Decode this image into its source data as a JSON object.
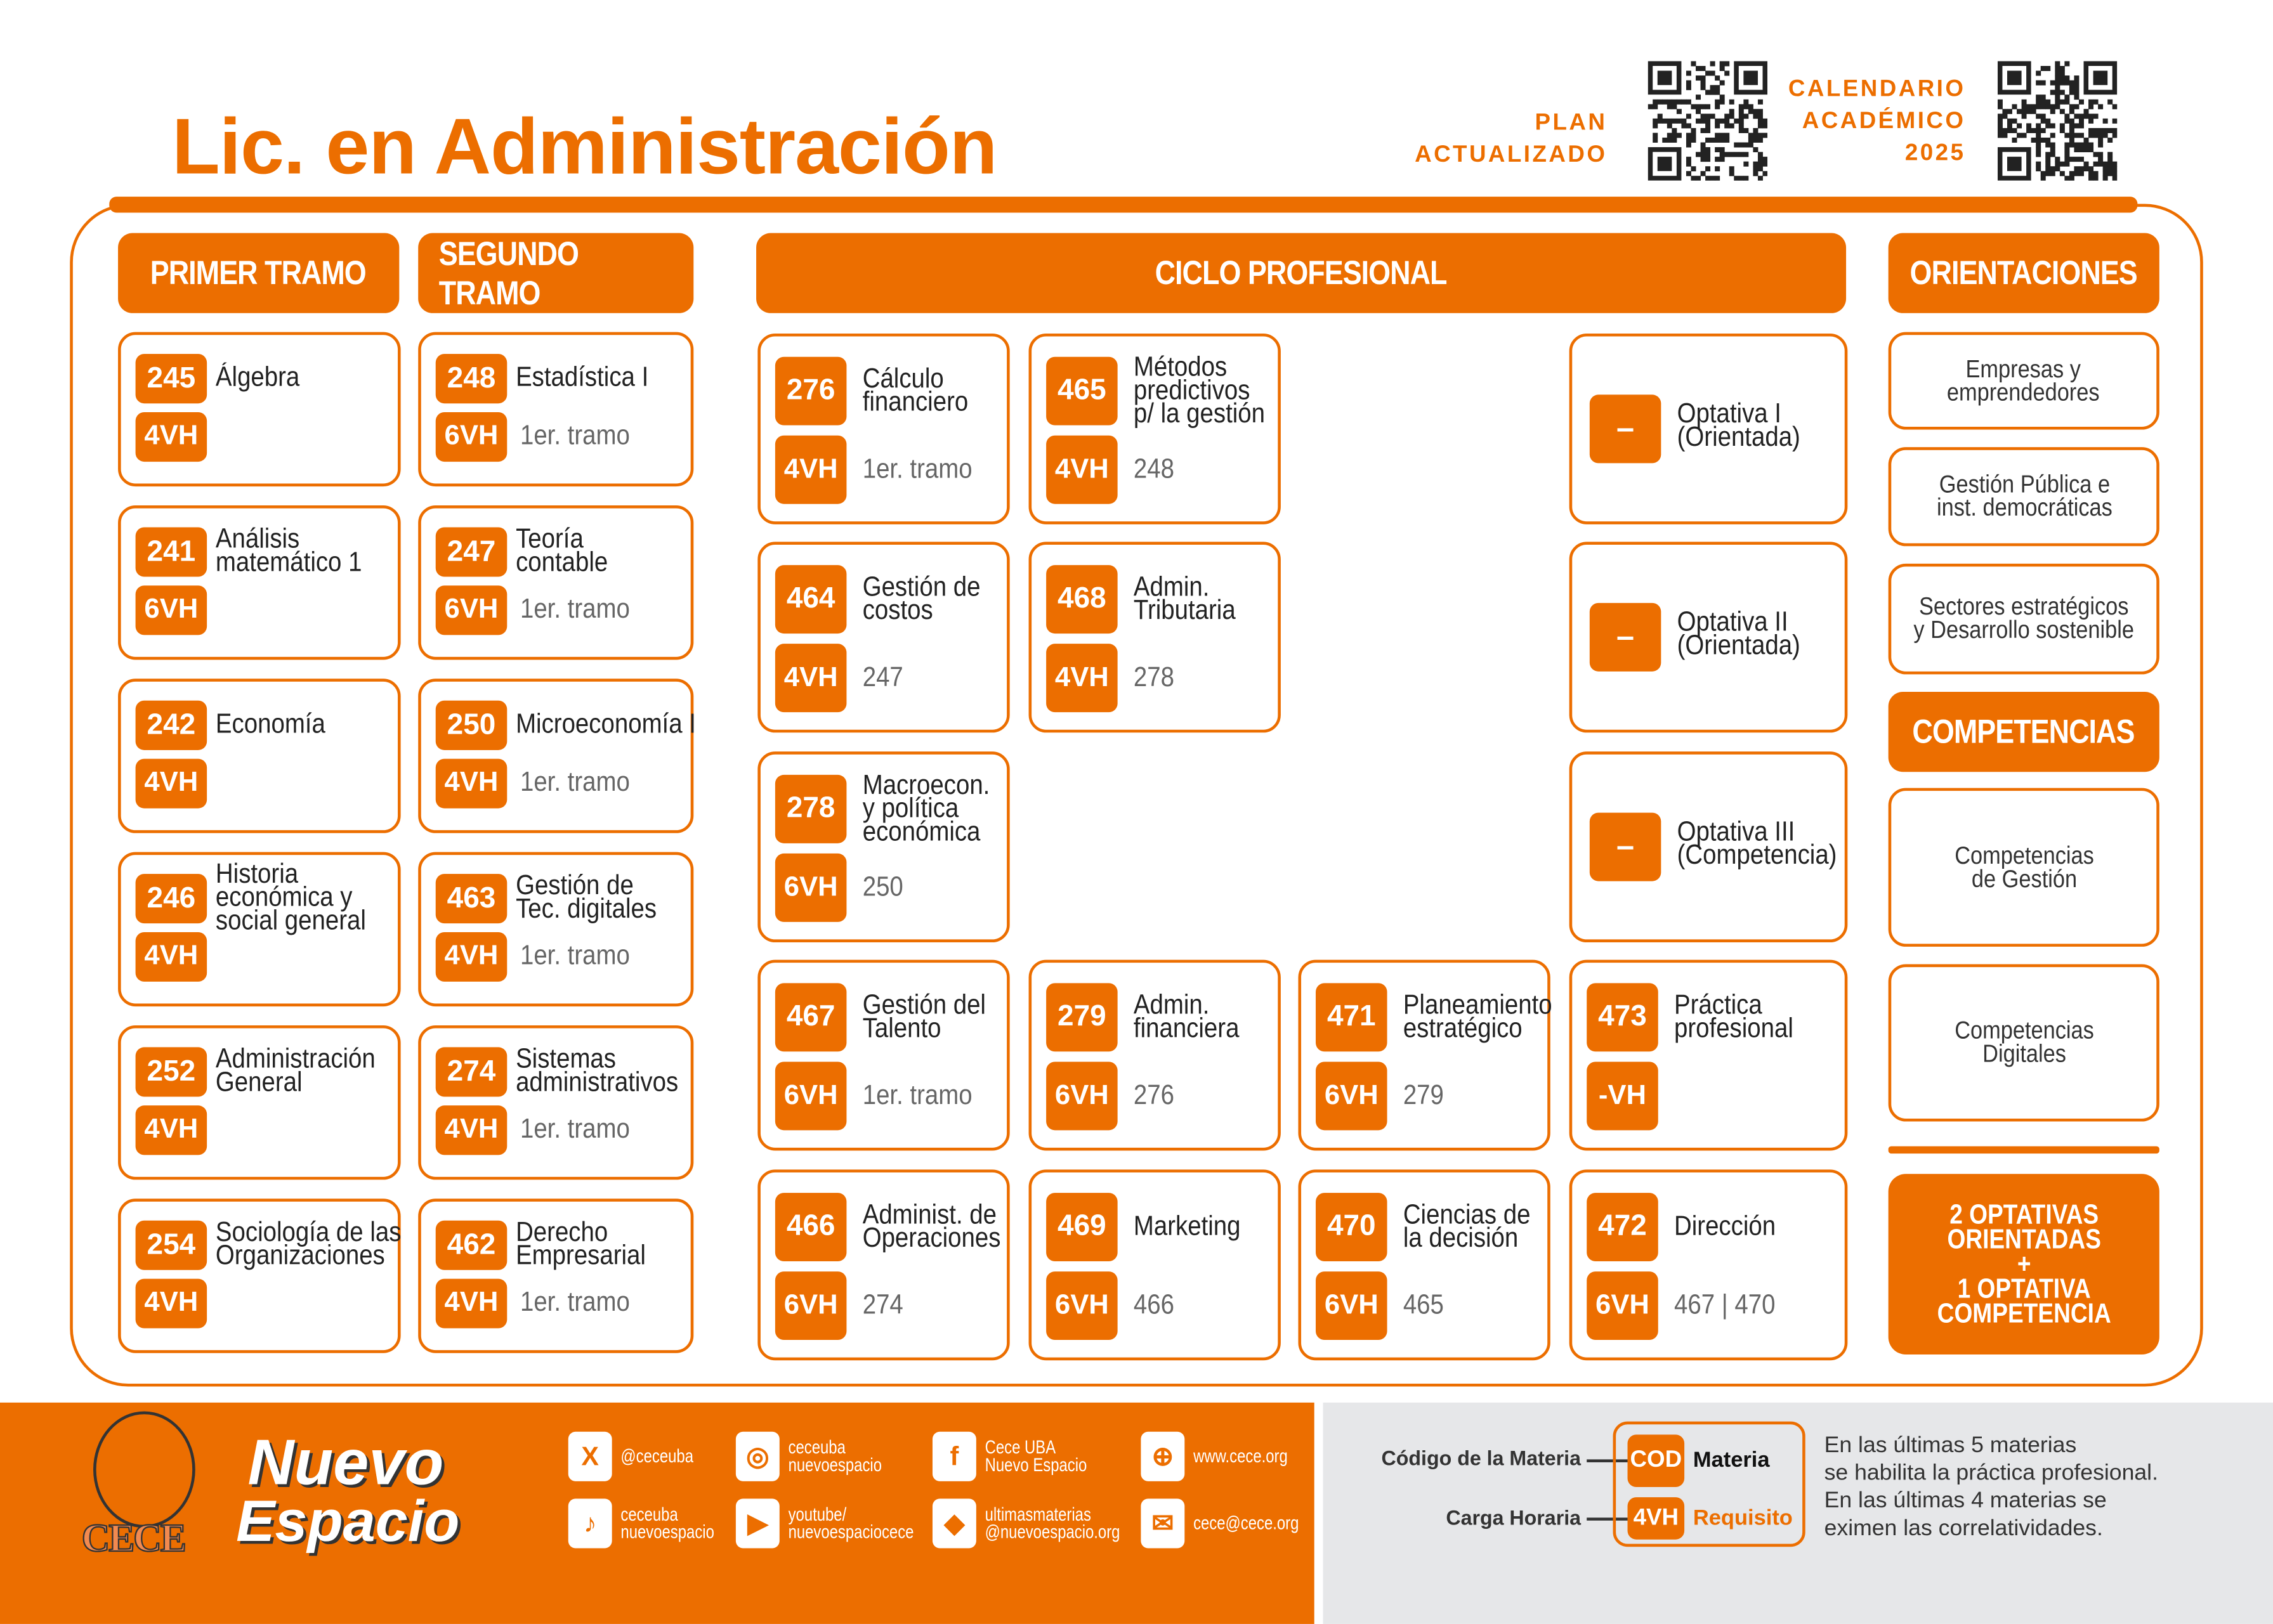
{
  "colors": {
    "accent": "#EC6E00",
    "footer_gray": "#E6E7E9"
  },
  "header": {
    "title": "Lic. en Administración",
    "plan_label": "PLAN\nACTUALIZADO",
    "calendar_label": "CALENDARIO\nACADÉMICO\n2025"
  },
  "sections": {
    "primer_tramo": "PRIMER TRAMO",
    "segundo_tramo": "SEGUNDO TRAMO",
    "ciclo_profesional": "CICLO PROFESIONAL",
    "orientaciones": "ORIENTACIONES",
    "competencias": "COMPETENCIAS"
  },
  "primer_tramo": [
    {
      "code": "245",
      "name": "Álgebra",
      "hours": "4VH",
      "req": ""
    },
    {
      "code": "241",
      "name": "Análisis\nmatemático 1",
      "hours": "6VH",
      "req": ""
    },
    {
      "code": "242",
      "name": "Economía",
      "hours": "4VH",
      "req": ""
    },
    {
      "code": "246",
      "name": "Historia\neconómica y\nsocial general",
      "hours": "4VH",
      "req": ""
    },
    {
      "code": "252",
      "name": "Administración\nGeneral",
      "hours": "4VH",
      "req": ""
    },
    {
      "code": "254",
      "name": "Sociología de las\nOrganizaciones",
      "hours": "4VH",
      "req": ""
    }
  ],
  "segundo_tramo": [
    {
      "code": "248",
      "name": "Estadística I",
      "hours": "6VH",
      "req": "1er. tramo"
    },
    {
      "code": "247",
      "name": "Teoría\ncontable",
      "hours": "6VH",
      "req": "1er. tramo"
    },
    {
      "code": "250",
      "name": "Microeconomía I",
      "hours": "4VH",
      "req": "1er. tramo"
    },
    {
      "code": "463",
      "name": "Gestión de\nTec. digitales",
      "hours": "4VH",
      "req": "1er. tramo"
    },
    {
      "code": "274",
      "name": "Sistemas\nadministrativos",
      "hours": "4VH",
      "req": "1er. tramo"
    },
    {
      "code": "462",
      "name": "Derecho\nEmpresarial",
      "hours": "4VH",
      "req": "1er. tramo"
    }
  ],
  "ciclo_profesional": [
    [
      {
        "code": "276",
        "name": "Cálculo\nfinanciero",
        "hours": "4VH",
        "req": "1er. tramo"
      },
      {
        "code": "465",
        "name": "Métodos\npredictivos\np/ la gestión",
        "hours": "4VH",
        "req": "248"
      },
      null,
      {
        "code": "–",
        "name": "Optativa I\n(Orientada)",
        "hours": "",
        "req": ""
      }
    ],
    [
      {
        "code": "464",
        "name": "Gestión de\ncostos",
        "hours": "4VH",
        "req": "247"
      },
      {
        "code": "468",
        "name": "Admin.\nTributaria",
        "hours": "4VH",
        "req": "278"
      },
      null,
      {
        "code": "–",
        "name": "Optativa II\n(Orientada)",
        "hours": "",
        "req": ""
      }
    ],
    [
      {
        "code": "278",
        "name": "Macroecon.\ny política\neconómica",
        "hours": "6VH",
        "req": "250"
      },
      null,
      null,
      {
        "code": "–",
        "name": "Optativa III\n(Competencia)",
        "hours": "",
        "req": ""
      }
    ],
    [
      {
        "code": "467",
        "name": "Gestión del\nTalento",
        "hours": "6VH",
        "req": "1er. tramo"
      },
      {
        "code": "279",
        "name": "Admin.\nfinanciera",
        "hours": "6VH",
        "req": "276"
      },
      {
        "code": "471",
        "name": "Planeamiento\nestratégico",
        "hours": "6VH",
        "req": "279"
      },
      {
        "code": "473",
        "name": "Práctica\nprofesional",
        "hours": "-VH",
        "req": ""
      }
    ],
    [
      {
        "code": "466",
        "name": "Administ. de\nOperaciones",
        "hours": "6VH",
        "req": "274"
      },
      {
        "code": "469",
        "name": "Marketing",
        "hours": "6VH",
        "req": "466"
      },
      {
        "code": "470",
        "name": "Ciencias de\nla decisión",
        "hours": "6VH",
        "req": "465"
      },
      {
        "code": "472",
        "name": "Dirección",
        "hours": "6VH",
        "req": "467 | 470"
      }
    ]
  ],
  "orientaciones": [
    "Empresas y\nemprendedores",
    "Gestión Pública e\ninst. democráticas",
    "Sectores estratégicos\ny Desarrollo sostenible"
  ],
  "competencias": [
    "Competencias\nde Gestión",
    "Competencias\nDigitales"
  ],
  "summary": "2 OPTATIVAS\nORIENTADAS\n+\n1 OPTATIVA\nCOMPETENCIA",
  "footer": {
    "logo_cece": "CECE",
    "logo_nuevo": "Nuevo",
    "logo_espacio": "Espacio",
    "social": [
      {
        "icon": "x-icon",
        "glyph": "X",
        "text": "@ceceuba"
      },
      {
        "icon": "instagram-icon",
        "glyph": "◎",
        "text": "ceceuba\nnuevoespacio"
      },
      {
        "icon": "facebook-icon",
        "glyph": "f",
        "text": "Cece UBA\nNuevo Espacio"
      },
      {
        "icon": "globe-icon",
        "glyph": "⊕",
        "text": "www.cece.org"
      },
      {
        "icon": "tiktok-icon",
        "glyph": "♪",
        "text": "ceceuba\nnuevoespacio"
      },
      {
        "icon": "youtube-icon",
        "glyph": "▶",
        "text": "youtube/\nnuevoespaciocece"
      },
      {
        "icon": "graduation-cap-icon",
        "glyph": "◆",
        "text": "ultimasmaterias\n@nuevoespacio.org"
      },
      {
        "icon": "mail-icon",
        "glyph": "✉",
        "text": "cece@cece.org"
      }
    ],
    "legend": {
      "code_label": "Código de la Materia",
      "hours_label": "Carga Horaria",
      "code_badge": "COD",
      "subject": "Materia",
      "hours_badge": "4VH",
      "requirement": "Requisito"
    },
    "note": "En las últimas 5 materias\nse habilita la práctica profesional.\nEn las últimas 4 materias se\neximen las correlatividades."
  }
}
